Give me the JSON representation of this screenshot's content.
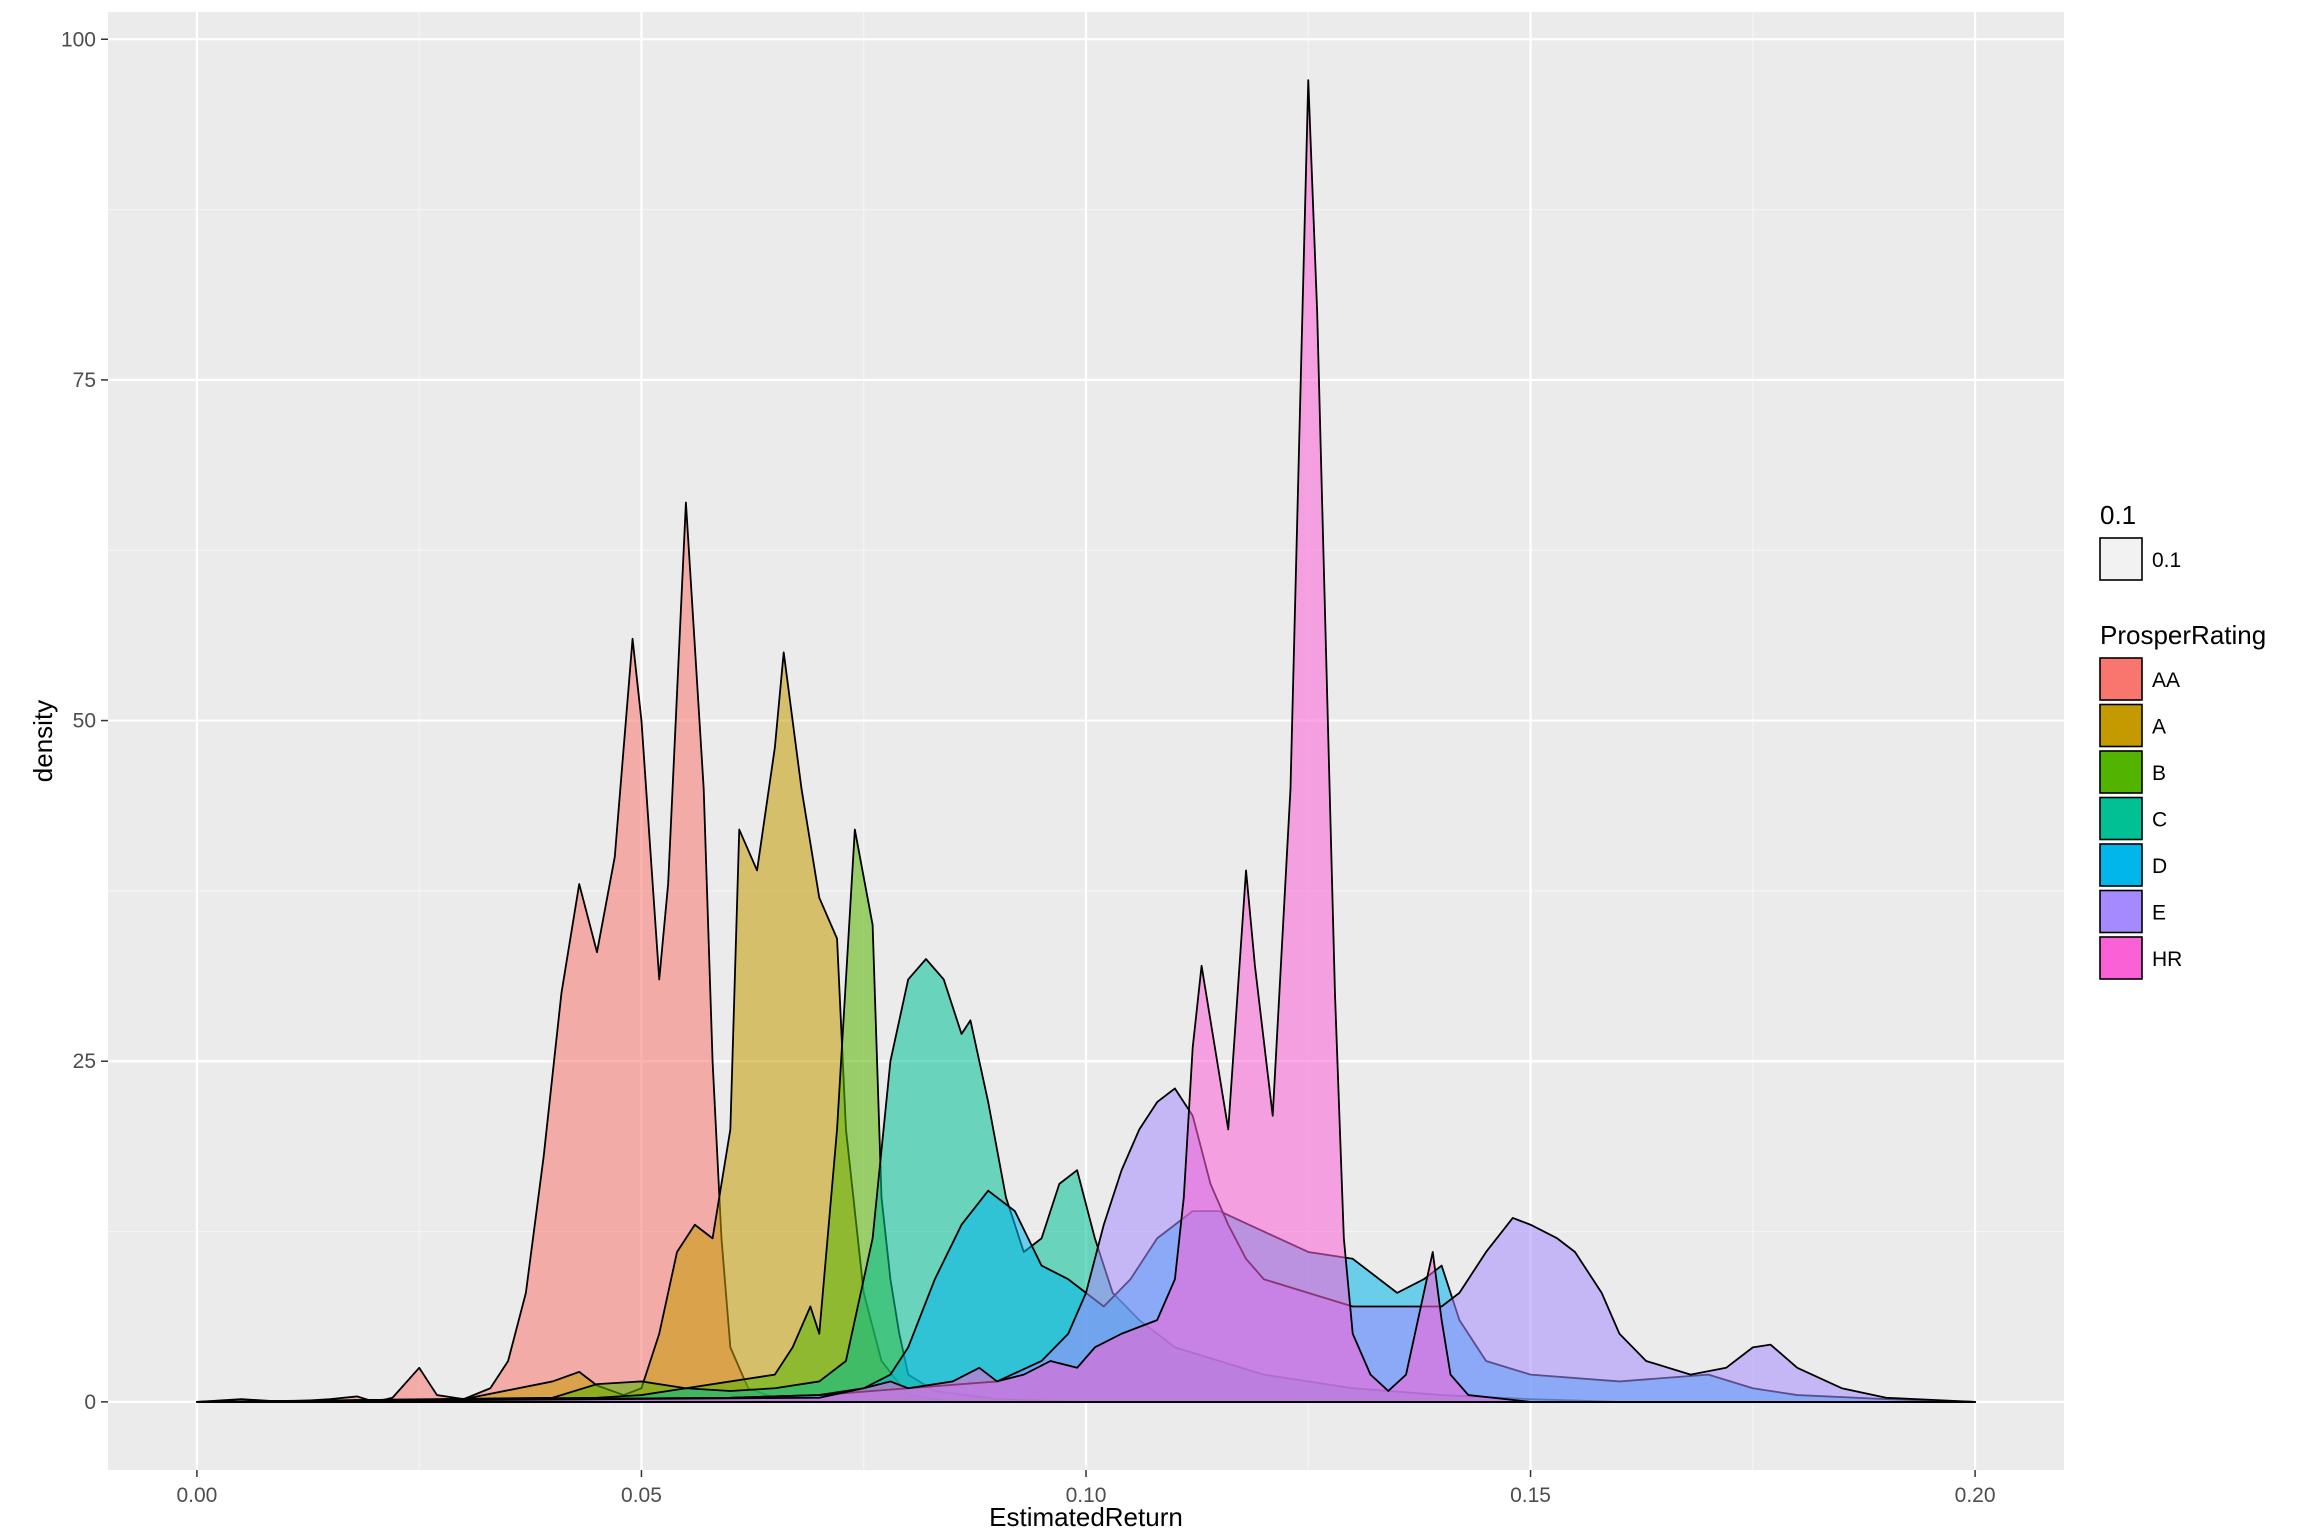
{
  "chart_data": {
    "type": "area",
    "subtype": "density",
    "xlabel": "EstimatedReturn",
    "ylabel": "density",
    "xlim": [
      -0.01,
      0.21
    ],
    "ylim": [
      -5,
      102
    ],
    "x_ticks": [
      0.0,
      0.05,
      0.1,
      0.15,
      0.2
    ],
    "x_tick_labels": [
      "0.00",
      "0.05",
      "0.10",
      "0.15",
      "0.20"
    ],
    "y_ticks": [
      0,
      25,
      50,
      75,
      100
    ],
    "y_tick_labels": [
      "0",
      "25",
      "50",
      "75",
      "100"
    ],
    "grid": true,
    "fill_alpha": 0.55,
    "legend_position": "right",
    "legend_alpha": {
      "title": "0.1",
      "entries": [
        "0.1"
      ]
    },
    "legend_title": "ProsperRating",
    "series": [
      {
        "name": "AA",
        "color": "#F8766D",
        "points": [
          [
            0.0,
            0
          ],
          [
            0.005,
            0.2
          ],
          [
            0.01,
            0
          ],
          [
            0.015,
            0.2
          ],
          [
            0.018,
            0.4
          ],
          [
            0.02,
            0
          ],
          [
            0.022,
            0.3
          ],
          [
            0.025,
            2.5
          ],
          [
            0.027,
            0.5
          ],
          [
            0.03,
            0.2
          ],
          [
            0.033,
            1
          ],
          [
            0.035,
            3
          ],
          [
            0.037,
            8
          ],
          [
            0.039,
            18
          ],
          [
            0.041,
            30
          ],
          [
            0.043,
            38
          ],
          [
            0.045,
            33
          ],
          [
            0.047,
            40
          ],
          [
            0.049,
            56
          ],
          [
            0.05,
            50
          ],
          [
            0.052,
            31
          ],
          [
            0.053,
            38
          ],
          [
            0.055,
            66
          ],
          [
            0.057,
            45
          ],
          [
            0.058,
            25
          ],
          [
            0.059,
            12
          ],
          [
            0.06,
            4
          ],
          [
            0.062,
            1
          ],
          [
            0.065,
            0.3
          ],
          [
            0.07,
            0
          ],
          [
            0.2,
            0
          ]
        ]
      },
      {
        "name": "A",
        "color": "#C49A00",
        "points": [
          [
            0.0,
            0
          ],
          [
            0.03,
            0.2
          ],
          [
            0.04,
            1.5
          ],
          [
            0.043,
            2.2
          ],
          [
            0.045,
            1.2
          ],
          [
            0.048,
            0.5
          ],
          [
            0.05,
            1
          ],
          [
            0.052,
            5
          ],
          [
            0.054,
            11
          ],
          [
            0.056,
            13
          ],
          [
            0.058,
            12
          ],
          [
            0.06,
            20
          ],
          [
            0.061,
            42
          ],
          [
            0.063,
            39
          ],
          [
            0.065,
            48
          ],
          [
            0.066,
            55
          ],
          [
            0.068,
            45
          ],
          [
            0.07,
            37
          ],
          [
            0.072,
            34
          ],
          [
            0.073,
            20
          ],
          [
            0.075,
            8
          ],
          [
            0.077,
            3
          ],
          [
            0.08,
            0.5
          ],
          [
            0.085,
            0
          ],
          [
            0.2,
            0
          ]
        ]
      },
      {
        "name": "B",
        "color": "#53B400",
        "points": [
          [
            0.0,
            0
          ],
          [
            0.04,
            0.3
          ],
          [
            0.045,
            1.3
          ],
          [
            0.05,
            1.5
          ],
          [
            0.055,
            1
          ],
          [
            0.06,
            1.5
          ],
          [
            0.065,
            2
          ],
          [
            0.067,
            4
          ],
          [
            0.069,
            7
          ],
          [
            0.07,
            5
          ],
          [
            0.072,
            20
          ],
          [
            0.074,
            42
          ],
          [
            0.076,
            35
          ],
          [
            0.077,
            15
          ],
          [
            0.078,
            9
          ],
          [
            0.079,
            5
          ],
          [
            0.08,
            2
          ],
          [
            0.083,
            0.8
          ],
          [
            0.09,
            0.2
          ],
          [
            0.1,
            0
          ],
          [
            0.2,
            0
          ]
        ]
      },
      {
        "name": "C",
        "color": "#00C094",
        "points": [
          [
            0.0,
            0
          ],
          [
            0.045,
            0.3
          ],
          [
            0.05,
            0.5
          ],
          [
            0.055,
            1
          ],
          [
            0.06,
            0.8
          ],
          [
            0.065,
            1
          ],
          [
            0.07,
            1.5
          ],
          [
            0.073,
            3
          ],
          [
            0.076,
            12
          ],
          [
            0.078,
            25
          ],
          [
            0.08,
            31
          ],
          [
            0.082,
            32.5
          ],
          [
            0.084,
            31
          ],
          [
            0.086,
            27
          ],
          [
            0.087,
            28
          ],
          [
            0.089,
            22
          ],
          [
            0.091,
            15
          ],
          [
            0.093,
            11
          ],
          [
            0.095,
            12
          ],
          [
            0.097,
            16
          ],
          [
            0.099,
            17
          ],
          [
            0.101,
            12
          ],
          [
            0.103,
            8
          ],
          [
            0.106,
            6
          ],
          [
            0.11,
            4
          ],
          [
            0.115,
            3
          ],
          [
            0.12,
            2
          ],
          [
            0.13,
            1
          ],
          [
            0.14,
            0.5
          ],
          [
            0.15,
            0.2
          ],
          [
            0.16,
            0
          ],
          [
            0.2,
            0
          ]
        ]
      },
      {
        "name": "D",
        "color": "#00B6EB",
        "points": [
          [
            0.0,
            0
          ],
          [
            0.06,
            0.3
          ],
          [
            0.07,
            0.5
          ],
          [
            0.075,
            1
          ],
          [
            0.078,
            2
          ],
          [
            0.08,
            4
          ],
          [
            0.083,
            9
          ],
          [
            0.086,
            13
          ],
          [
            0.089,
            15.5
          ],
          [
            0.092,
            14
          ],
          [
            0.095,
            10
          ],
          [
            0.098,
            9
          ],
          [
            0.1,
            8
          ],
          [
            0.102,
            7
          ],
          [
            0.105,
            9
          ],
          [
            0.108,
            12
          ],
          [
            0.112,
            14
          ],
          [
            0.115,
            14
          ],
          [
            0.12,
            12.5
          ],
          [
            0.125,
            11
          ],
          [
            0.13,
            10.5
          ],
          [
            0.135,
            8
          ],
          [
            0.138,
            9
          ],
          [
            0.14,
            10
          ],
          [
            0.142,
            6
          ],
          [
            0.145,
            3
          ],
          [
            0.15,
            2
          ],
          [
            0.16,
            1.5
          ],
          [
            0.17,
            2
          ],
          [
            0.175,
            1
          ],
          [
            0.18,
            0.5
          ],
          [
            0.19,
            0.2
          ],
          [
            0.2,
            0
          ]
        ]
      },
      {
        "name": "E",
        "color": "#A58AFF",
        "points": [
          [
            0.0,
            0
          ],
          [
            0.06,
            0.3
          ],
          [
            0.07,
            0.5
          ],
          [
            0.08,
            1
          ],
          [
            0.09,
            1.5
          ],
          [
            0.095,
            3
          ],
          [
            0.098,
            5
          ],
          [
            0.1,
            8
          ],
          [
            0.102,
            13
          ],
          [
            0.104,
            17
          ],
          [
            0.106,
            20
          ],
          [
            0.108,
            22
          ],
          [
            0.11,
            23
          ],
          [
            0.112,
            21
          ],
          [
            0.114,
            16
          ],
          [
            0.116,
            13
          ],
          [
            0.118,
            10.5
          ],
          [
            0.12,
            9
          ],
          [
            0.125,
            8
          ],
          [
            0.13,
            7
          ],
          [
            0.135,
            7
          ],
          [
            0.14,
            7
          ],
          [
            0.142,
            8
          ],
          [
            0.145,
            11
          ],
          [
            0.148,
            13.5
          ],
          [
            0.15,
            13
          ],
          [
            0.153,
            12
          ],
          [
            0.155,
            11
          ],
          [
            0.158,
            8
          ],
          [
            0.16,
            5
          ],
          [
            0.163,
            3
          ],
          [
            0.168,
            2
          ],
          [
            0.172,
            2.5
          ],
          [
            0.175,
            4
          ],
          [
            0.177,
            4.2
          ],
          [
            0.18,
            2.5
          ],
          [
            0.185,
            1
          ],
          [
            0.19,
            0.3
          ],
          [
            0.2,
            0
          ]
        ]
      },
      {
        "name": "HR",
        "color": "#FB61D7",
        "points": [
          [
            0.0,
            0
          ],
          [
            0.07,
            0.3
          ],
          [
            0.075,
            1
          ],
          [
            0.078,
            1.5
          ],
          [
            0.08,
            1
          ],
          [
            0.085,
            1.5
          ],
          [
            0.088,
            2.5
          ],
          [
            0.09,
            1.5
          ],
          [
            0.093,
            2
          ],
          [
            0.096,
            3
          ],
          [
            0.099,
            2.5
          ],
          [
            0.101,
            4
          ],
          [
            0.104,
            5
          ],
          [
            0.108,
            6
          ],
          [
            0.11,
            9
          ],
          [
            0.111,
            15
          ],
          [
            0.112,
            26
          ],
          [
            0.113,
            32
          ],
          [
            0.114,
            28
          ],
          [
            0.116,
            20
          ],
          [
            0.118,
            39
          ],
          [
            0.119,
            32
          ],
          [
            0.121,
            21
          ],
          [
            0.123,
            45
          ],
          [
            0.125,
            97
          ],
          [
            0.126,
            80
          ],
          [
            0.128,
            30
          ],
          [
            0.129,
            12
          ],
          [
            0.13,
            5
          ],
          [
            0.132,
            2
          ],
          [
            0.134,
            0.8
          ],
          [
            0.136,
            2
          ],
          [
            0.138,
            8
          ],
          [
            0.139,
            11
          ],
          [
            0.14,
            6
          ],
          [
            0.141,
            2
          ],
          [
            0.143,
            0.5
          ],
          [
            0.15,
            0
          ],
          [
            0.2,
            0
          ]
        ]
      }
    ]
  }
}
